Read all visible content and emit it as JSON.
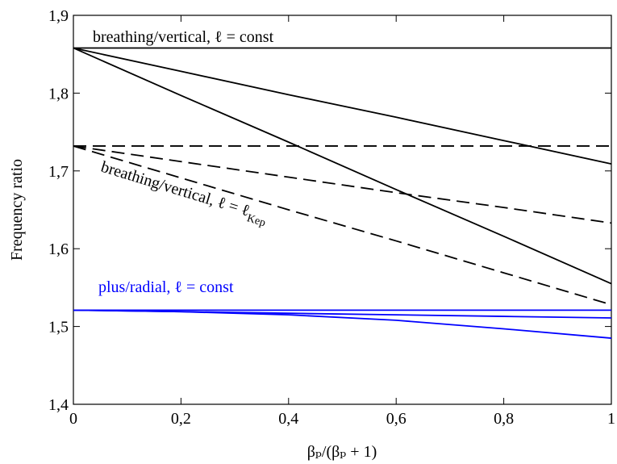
{
  "chart_data": {
    "type": "line",
    "x": [
      0,
      0.2,
      0.4,
      0.6,
      0.8,
      1
    ],
    "series": [
      {
        "color": "#000000",
        "dashed": false,
        "values": [
          1.858,
          1.858,
          1.858,
          1.858,
          1.858,
          1.858
        ]
      },
      {
        "color": "#000000",
        "dashed": false,
        "values": [
          1.858,
          1.828,
          1.798,
          1.769,
          1.739,
          1.709
        ]
      },
      {
        "color": "#000000",
        "dashed": false,
        "values": [
          1.858,
          1.797,
          1.737,
          1.676,
          1.616,
          1.555
        ]
      },
      {
        "color": "#000000",
        "dashed": true,
        "values": [
          1.732,
          1.732,
          1.732,
          1.732,
          1.732,
          1.732
        ]
      },
      {
        "color": "#000000",
        "dashed": true,
        "values": [
          1.732,
          1.712,
          1.692,
          1.672,
          1.653,
          1.633
        ]
      },
      {
        "color": "#000000",
        "dashed": true,
        "values": [
          1.732,
          1.691,
          1.65,
          1.61,
          1.569,
          1.528
        ]
      },
      {
        "color": "#0000ff",
        "dashed": false,
        "values": [
          1.521,
          1.521,
          1.521,
          1.521,
          1.521,
          1.521
        ]
      },
      {
        "color": "#0000ff",
        "dashed": false,
        "values": [
          1.521,
          1.519,
          1.517,
          1.515,
          1.513,
          1.511
        ]
      },
      {
        "color": "#0000ff",
        "dashed": false,
        "values": [
          1.521,
          1.519,
          1.515,
          1.508,
          1.497,
          1.485
        ]
      }
    ],
    "annotations": [
      {
        "text": "breathing/vertical, ℓ = const",
        "color": "#000000"
      },
      {
        "text": "breathing/vertical, ℓ = ℓ",
        "subscript": "Kep",
        "color": "#000000"
      },
      {
        "text": "plus/radial, ℓ = const",
        "color": "#0000ff"
      }
    ],
    "x_label": "βₚ/(βₚ + 1)",
    "y_label": "Frequency ratio",
    "xlim": [
      0,
      1
    ],
    "ylim": [
      1.4,
      1.9
    ],
    "xticks": [
      0,
      {
        "value": 0.2,
        "label": "0,2"
      },
      {
        "value": 0.4,
        "label": "0,4"
      },
      {
        "value": 0.6,
        "label": "0,6"
      },
      {
        "value": 0.8,
        "label": "0,8"
      },
      1
    ],
    "yticks": [
      {
        "value": 1.4,
        "label": "1,4"
      },
      {
        "value": 1.5,
        "label": "1,5"
      },
      {
        "value": 1.6,
        "label": "1,6"
      },
      {
        "value": 1.7,
        "label": "1,7"
      },
      {
        "value": 1.8,
        "label": "1,8"
      },
      {
        "value": 1.9,
        "label": "1,9"
      }
    ]
  }
}
